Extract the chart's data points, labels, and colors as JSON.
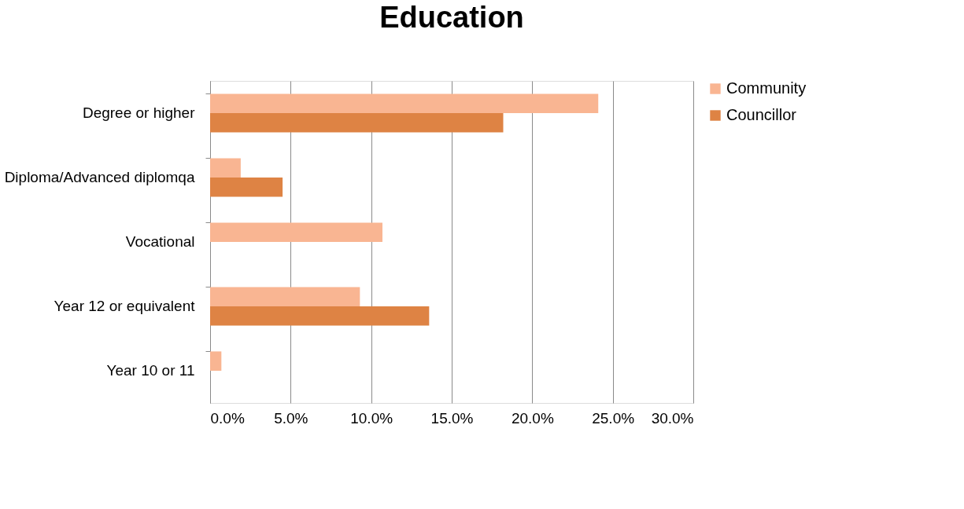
{
  "chart_data": {
    "type": "bar",
    "orientation": "horizontal",
    "title": "Education",
    "categories": [
      "Degree or higher",
      "Diploma/Advanced diplomqa",
      "Vocational",
      "Year 12 or equivalent",
      "Year 10 or 11"
    ],
    "series": [
      {
        "name": "Community",
        "color": "#f9b592",
        "values": [
          24.1,
          1.9,
          10.7,
          9.3,
          0.7
        ]
      },
      {
        "name": "Councillor",
        "color": "#de8344",
        "values": [
          18.2,
          4.5,
          0,
          13.6,
          0
        ]
      }
    ],
    "xlim": [
      0,
      30
    ],
    "xticks": [
      {
        "value": 0,
        "label": "0.0%"
      },
      {
        "value": 5,
        "label": "5.0%"
      },
      {
        "value": 10,
        "label": "10.0%"
      },
      {
        "value": 15,
        "label": "15.0%"
      },
      {
        "value": 20,
        "label": "20.0%"
      },
      {
        "value": 25,
        "label": "25.0%"
      },
      {
        "value": 30,
        "label": "30.0%"
      }
    ],
    "grid": "x",
    "legend": "right"
  }
}
